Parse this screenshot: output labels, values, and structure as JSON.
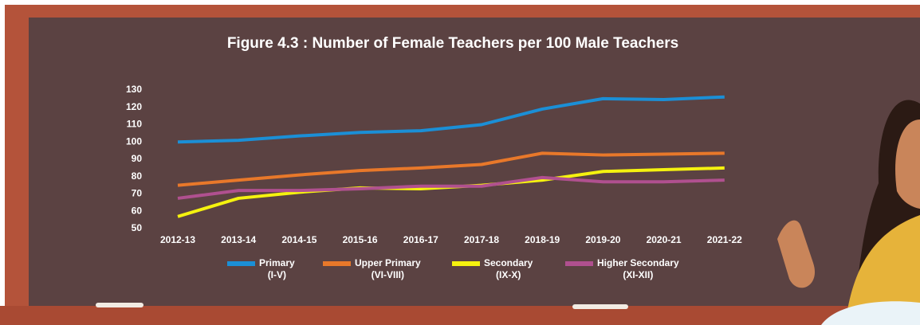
{
  "chart_data": {
    "type": "line",
    "title": "Figure 4.3 : Number of Female Teachers per 100 Male Teachers",
    "categories": [
      "2012-13",
      "2013-14",
      "2014-15",
      "2015-16",
      "2016-17",
      "2017-18",
      "2018-19",
      "2019-20",
      "2020-21",
      "2021-22"
    ],
    "ylim": [
      50,
      130
    ],
    "yticks": [
      50,
      60,
      70,
      80,
      90,
      100,
      110,
      120,
      130
    ],
    "series": [
      {
        "name": "Primary",
        "range": "(I-V)",
        "color": "#1b8fd6",
        "values": [
          100,
          101,
          103.5,
          105.5,
          106.5,
          110,
          119,
          125,
          124.5,
          126
        ]
      },
      {
        "name": "Upper Primary",
        "range": "(VI-VIII)",
        "color": "#e8782a",
        "values": [
          75,
          78,
          81,
          83.5,
          85,
          87,
          93.5,
          92.5,
          93,
          93.5
        ]
      },
      {
        "name": "Secondary",
        "range": "(IX-X)",
        "color": "#f5f20f",
        "values": [
          57,
          67.5,
          71,
          73.5,
          73,
          75,
          78,
          83,
          84,
          85
        ]
      },
      {
        "name": "Higher Secondary",
        "range": "(XI-XII)",
        "color": "#b0508f",
        "values": [
          67.5,
          72,
          72,
          73,
          74.5,
          74.5,
          79.5,
          77,
          77,
          78
        ]
      }
    ]
  }
}
